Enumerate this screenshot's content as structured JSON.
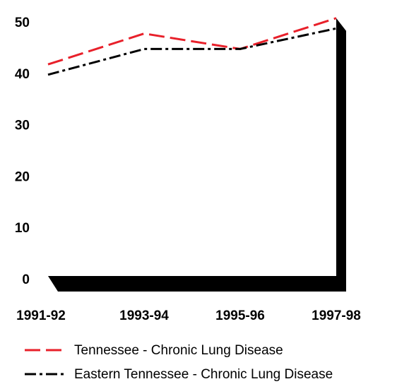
{
  "chart_data": {
    "type": "line",
    "categories": [
      "1991-92",
      "1993-94",
      "1995-96",
      "1997-98"
    ],
    "series": [
      {
        "name": "Tennessee - Chronic Lung Disease",
        "color": "#e8202a",
        "dash": "22,8",
        "values": [
          42,
          48,
          45,
          51
        ]
      },
      {
        "name": "Eastern Tennessee - Chronic Lung Disease",
        "color": "#000000",
        "dash": "16,5,4,5",
        "values": [
          40,
          45,
          45,
          49
        ]
      }
    ],
    "ylim": [
      0,
      50
    ],
    "yticks": [
      0,
      10,
      20,
      30,
      40,
      50
    ],
    "grid": false
  }
}
